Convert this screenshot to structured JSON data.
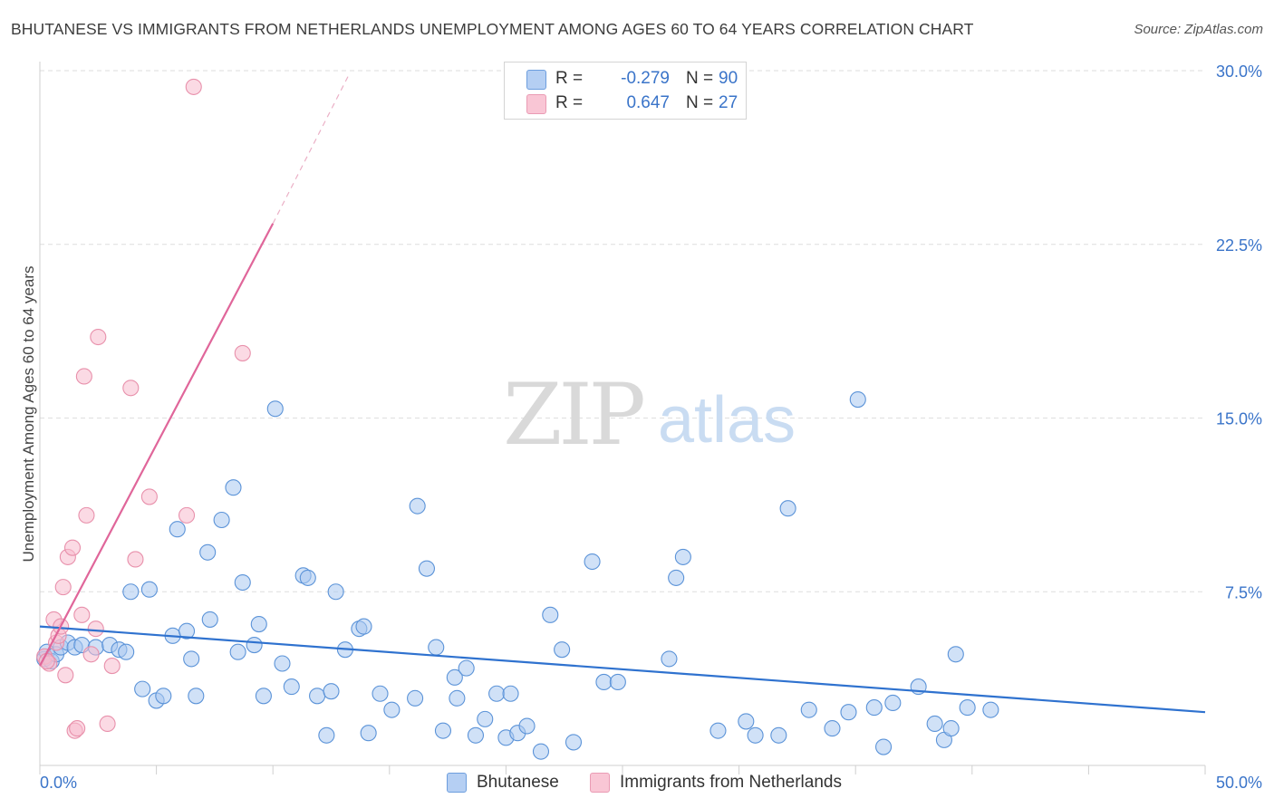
{
  "header": {
    "title": "BHUTANESE VS IMMIGRANTS FROM NETHERLANDS UNEMPLOYMENT AMONG AGES 60 TO 64 YEARS CORRELATION CHART",
    "source": "Source: ZipAtlas.com"
  },
  "watermark": {
    "zip": "ZIP",
    "atlas": "atlas"
  },
  "legend_top": {
    "rows": [
      {
        "r_label": "R =",
        "r_value": "-0.279",
        "n_label": "N =",
        "n_value": "90"
      },
      {
        "r_label": "R =",
        "r_value": "0.647",
        "n_label": "N =",
        "n_value": "27"
      }
    ]
  },
  "legend_bottom": {
    "items": [
      "Bhutanese",
      "Immigrants from Netherlands"
    ]
  },
  "colors": {
    "blue_fill": "#a9c8f0",
    "blue_stroke": "#5b93d8",
    "blue_line": "#2f72cf",
    "pink_fill": "#f7bccd",
    "pink_stroke": "#e890ab",
    "pink_line": "#e0669a",
    "tick_label": "#3a74c9",
    "grid": "#dedede"
  },
  "chart_data": {
    "type": "scatter",
    "title": "BHUTANESE VS IMMIGRANTS FROM NETHERLANDS UNEMPLOYMENT AMONG AGES 60 TO 64 YEARS CORRELATION CHART",
    "xlabel": "",
    "ylabel": "Unemployment Among Ages 60 to 64 years",
    "xlim": [
      0,
      50
    ],
    "ylim": [
      0,
      30
    ],
    "x_tick_labels": [
      "0.0%",
      "50.0%"
    ],
    "y_ticks": [
      7.5,
      15.0,
      22.5,
      30.0
    ],
    "y_tick_labels": [
      "7.5%",
      "15.0%",
      "22.5%",
      "30.0%"
    ],
    "grid": "horizontal dashed",
    "series": [
      {
        "name": "Bhutanese",
        "r": -0.279,
        "n": 90,
        "trend": {
          "x": [
            0,
            50
          ],
          "y": [
            6.0,
            2.3
          ]
        },
        "points": [
          [
            0.2,
            4.6
          ],
          [
            0.3,
            4.9
          ],
          [
            0.5,
            4.5
          ],
          [
            0.7,
            4.8
          ],
          [
            0.9,
            5.1
          ],
          [
            1.2,
            5.3
          ],
          [
            1.5,
            5.1
          ],
          [
            1.8,
            5.2
          ],
          [
            2.4,
            5.1
          ],
          [
            3.0,
            5.2
          ],
          [
            3.4,
            5.0
          ],
          [
            3.7,
            4.9
          ],
          [
            3.9,
            7.5
          ],
          [
            4.4,
            3.3
          ],
          [
            4.7,
            7.6
          ],
          [
            5.0,
            2.8
          ],
          [
            5.3,
            3.0
          ],
          [
            5.7,
            5.6
          ],
          [
            5.9,
            10.2
          ],
          [
            6.3,
            5.8
          ],
          [
            6.5,
            4.6
          ],
          [
            6.7,
            3.0
          ],
          [
            7.2,
            9.2
          ],
          [
            7.3,
            6.3
          ],
          [
            7.8,
            10.6
          ],
          [
            8.3,
            12.0
          ],
          [
            8.5,
            4.9
          ],
          [
            8.7,
            7.9
          ],
          [
            9.2,
            5.2
          ],
          [
            9.4,
            6.1
          ],
          [
            9.6,
            3.0
          ],
          [
            10.1,
            15.4
          ],
          [
            10.4,
            4.4
          ],
          [
            10.8,
            3.4
          ],
          [
            11.3,
            8.2
          ],
          [
            11.5,
            8.1
          ],
          [
            11.9,
            3.0
          ],
          [
            12.3,
            1.3
          ],
          [
            12.5,
            3.2
          ],
          [
            12.7,
            7.5
          ],
          [
            13.1,
            5.0
          ],
          [
            13.7,
            5.9
          ],
          [
            13.9,
            6.0
          ],
          [
            14.1,
            1.4
          ],
          [
            14.6,
            3.1
          ],
          [
            15.1,
            2.4
          ],
          [
            16.1,
            2.9
          ],
          [
            16.2,
            11.2
          ],
          [
            16.6,
            8.5
          ],
          [
            17.0,
            5.1
          ],
          [
            17.3,
            1.5
          ],
          [
            17.8,
            3.8
          ],
          [
            17.9,
            2.9
          ],
          [
            18.3,
            4.2
          ],
          [
            18.7,
            1.3
          ],
          [
            19.1,
            2.0
          ],
          [
            19.6,
            3.1
          ],
          [
            20.0,
            1.2
          ],
          [
            20.2,
            3.1
          ],
          [
            20.5,
            1.4
          ],
          [
            20.9,
            1.7
          ],
          [
            21.5,
            0.6
          ],
          [
            21.9,
            6.5
          ],
          [
            22.4,
            5.0
          ],
          [
            22.9,
            1.0
          ],
          [
            23.7,
            8.8
          ],
          [
            24.2,
            3.6
          ],
          [
            24.8,
            3.6
          ],
          [
            27.0,
            4.6
          ],
          [
            27.3,
            8.1
          ],
          [
            27.6,
            9.0
          ],
          [
            29.1,
            1.5
          ],
          [
            30.3,
            1.9
          ],
          [
            30.7,
            1.3
          ],
          [
            31.7,
            1.3
          ],
          [
            32.1,
            11.1
          ],
          [
            33.0,
            2.4
          ],
          [
            34.0,
            1.6
          ],
          [
            34.7,
            2.3
          ],
          [
            35.1,
            15.8
          ],
          [
            35.8,
            2.5
          ],
          [
            36.2,
            0.8
          ],
          [
            36.6,
            2.7
          ],
          [
            37.7,
            3.4
          ],
          [
            38.4,
            1.8
          ],
          [
            38.8,
            1.1
          ],
          [
            39.1,
            1.6
          ],
          [
            39.3,
            4.8
          ],
          [
            39.8,
            2.5
          ],
          [
            40.8,
            2.4
          ]
        ]
      },
      {
        "name": "Immigrants from Netherlands",
        "r": 0.647,
        "n": 27,
        "trend": {
          "x": [
            0,
            10.0
          ],
          "y": [
            4.3,
            23.4
          ],
          "dashed_extension_x": [
            10.0,
            13.3
          ],
          "dashed_extension_y": [
            23.4,
            29.9
          ]
        },
        "points": [
          [
            0.2,
            4.7
          ],
          [
            0.4,
            4.4
          ],
          [
            0.6,
            6.3
          ],
          [
            0.7,
            5.3
          ],
          [
            0.8,
            5.6
          ],
          [
            0.9,
            6.0
          ],
          [
            1.0,
            7.7
          ],
          [
            1.1,
            3.9
          ],
          [
            1.2,
            9.0
          ],
          [
            1.4,
            9.4
          ],
          [
            1.5,
            1.5
          ],
          [
            1.6,
            1.6
          ],
          [
            1.8,
            6.5
          ],
          [
            1.9,
            16.8
          ],
          [
            2.0,
            10.8
          ],
          [
            2.2,
            4.8
          ],
          [
            2.4,
            5.9
          ],
          [
            2.5,
            18.5
          ],
          [
            2.9,
            1.8
          ],
          [
            3.1,
            4.3
          ],
          [
            3.9,
            16.3
          ],
          [
            4.1,
            8.9
          ],
          [
            4.7,
            11.6
          ],
          [
            6.3,
            10.8
          ],
          [
            6.6,
            29.3
          ],
          [
            8.7,
            17.8
          ],
          [
            0.3,
            4.5
          ]
        ]
      }
    ]
  }
}
